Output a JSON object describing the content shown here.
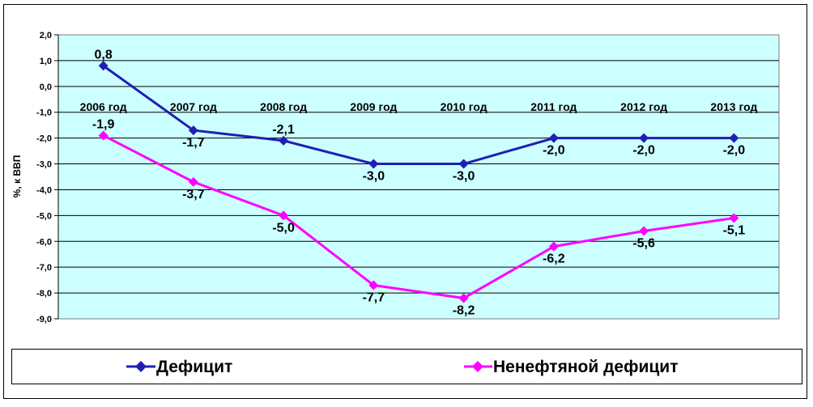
{
  "chart_data": {
    "type": "line",
    "ylabel": "%, к ВВП",
    "ylim": [
      -9.0,
      2.0
    ],
    "ytick_step": 1.0,
    "ytick_labels": [
      "2,0",
      "1,0",
      "0,0",
      "-1,0",
      "-2,0",
      "-3,0",
      "-4,0",
      "-5,0",
      "-6,0",
      "-7,0",
      "-8,0",
      "-9,0"
    ],
    "categories": [
      "2006 год",
      "2007 год",
      "2008 год",
      "2009 год",
      "2010 год",
      "2011 год",
      "2012 год",
      "2013 год"
    ],
    "grid": true,
    "legend_position": "bottom",
    "plot_background": "#ccffff",
    "series": [
      {
        "name": "Дефицит",
        "color": "#1f1fb4",
        "values": [
          0.8,
          -1.7,
          -2.1,
          -3.0,
          -3.0,
          -2.0,
          -2.0,
          -2.0
        ],
        "labels": [
          "0,8",
          "-1,7",
          "-2,1",
          "-3,0",
          "-3,0",
          "-2,0",
          "-2,0",
          "-2,0"
        ]
      },
      {
        "name": "Ненефтяной дефицит",
        "color": "#ff00ff",
        "values": [
          -1.9,
          -3.7,
          -5.0,
          -7.7,
          -8.2,
          -6.2,
          -5.6,
          -5.1
        ],
        "labels": [
          "-1,9",
          "-3,7",
          "-5,0",
          "-7,7",
          "-8,2",
          "-6,2",
          "-5,6",
          "-5,1"
        ]
      }
    ]
  }
}
